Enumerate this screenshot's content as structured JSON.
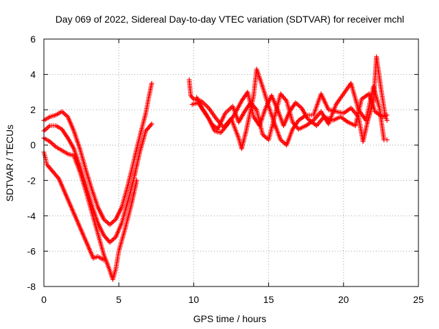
{
  "chart_data": {
    "type": "scatter",
    "title": "Day 069 of 2022, Sidereal Day-to-day VTEC variation (SDTVAR) for receiver mchl",
    "xlabel": "GPS time / hours",
    "ylabel": "SDTVAR / TECUs",
    "xlim": [
      0,
      25
    ],
    "ylim": [
      -8,
      6
    ],
    "xticks": [
      0,
      5,
      10,
      15,
      20,
      25
    ],
    "yticks": [
      -8,
      -6,
      -4,
      -2,
      0,
      2,
      4,
      6
    ],
    "grid": true,
    "marker": "+",
    "color": "#ff0000",
    "series": [
      {
        "values": [
          [
            0.0,
            1.4
          ],
          [
            0.4,
            1.6
          ],
          [
            0.8,
            1.7
          ],
          [
            1.2,
            1.9
          ],
          [
            1.6,
            1.6
          ],
          [
            2.0,
            0.8
          ],
          [
            2.4,
            -0.2
          ],
          [
            2.8,
            -1.4
          ],
          [
            3.2,
            -2.5
          ],
          [
            3.6,
            -3.5
          ],
          [
            4.0,
            -4.2
          ],
          [
            4.4,
            -4.5
          ],
          [
            4.8,
            -4.2
          ],
          [
            5.2,
            -3.5
          ],
          [
            5.6,
            -2.3
          ],
          [
            6.0,
            -0.9
          ],
          [
            6.4,
            0.5
          ],
          [
            6.8,
            1.8
          ],
          [
            7.0,
            2.7
          ],
          [
            7.2,
            3.5
          ]
        ]
      },
      {
        "values": [
          [
            0.0,
            0.8
          ],
          [
            0.4,
            1.1
          ],
          [
            0.8,
            1.1
          ],
          [
            1.2,
            0.9
          ],
          [
            1.6,
            0.4
          ],
          [
            2.0,
            -0.2
          ],
          [
            2.4,
            -1.2
          ],
          [
            2.8,
            -2.3
          ],
          [
            3.2,
            -3.4
          ],
          [
            3.6,
            -4.4
          ],
          [
            4.0,
            -5.1
          ],
          [
            4.4,
            -5.5
          ],
          [
            4.8,
            -5.2
          ],
          [
            5.2,
            -4.4
          ],
          [
            5.6,
            -3.2
          ],
          [
            6.0,
            -1.9
          ],
          [
            6.4,
            -0.4
          ],
          [
            6.8,
            0.8
          ],
          [
            7.2,
            1.2
          ]
        ]
      },
      {
        "values": [
          [
            0.0,
            0.4
          ],
          [
            0.4,
            0.2
          ],
          [
            0.8,
            -0.1
          ],
          [
            1.2,
            -0.3
          ],
          [
            1.6,
            -0.5
          ],
          [
            2.0,
            -0.6
          ],
          [
            2.4,
            -1.5
          ],
          [
            2.8,
            -2.6
          ],
          [
            3.2,
            -3.8
          ],
          [
            3.6,
            -5.0
          ],
          [
            4.0,
            -6.2
          ],
          [
            4.4,
            -7.1
          ],
          [
            4.6,
            -7.6
          ],
          [
            4.8,
            -7.0
          ],
          [
            5.0,
            -6.0
          ],
          [
            5.4,
            -4.8
          ],
          [
            5.8,
            -3.5
          ],
          [
            6.2,
            -2.0
          ]
        ]
      },
      {
        "values": [
          [
            0.0,
            -0.4
          ],
          [
            0.1,
            -0.7
          ],
          [
            0.2,
            -1.1
          ],
          [
            1.0,
            -1.9
          ],
          [
            3.3,
            -6.4
          ],
          [
            3.6,
            -6.3
          ],
          [
            4.0,
            -6.5
          ]
        ]
      },
      {
        "values": [
          [
            9.7,
            3.7
          ],
          [
            9.8,
            2.8
          ],
          [
            10.0,
            2.6
          ],
          [
            10.5,
            2.5
          ],
          [
            11.0,
            2.1
          ],
          [
            11.5,
            1.5
          ],
          [
            12.0,
            1.0
          ],
          [
            12.5,
            1.5
          ],
          [
            13.0,
            0.4
          ],
          [
            13.2,
            -0.2
          ],
          [
            13.5,
            0.8
          ],
          [
            14.0,
            2.8
          ],
          [
            14.2,
            4.3
          ],
          [
            14.6,
            3.3
          ],
          [
            15.0,
            2.2
          ],
          [
            15.4,
            1.2
          ],
          [
            15.8,
            0.3
          ],
          [
            16.2,
            0.0
          ],
          [
            16.6,
            0.9
          ],
          [
            17.0,
            1.4
          ],
          [
            17.5,
            1.7
          ],
          [
            18.0,
            1.7
          ],
          [
            18.5,
            2.9
          ],
          [
            19.0,
            2.0
          ],
          [
            19.5,
            1.9
          ],
          [
            20.0,
            1.8
          ],
          [
            20.5,
            2.1
          ],
          [
            21.0,
            1.6
          ],
          [
            21.3,
            0.2
          ],
          [
            21.6,
            1.3
          ],
          [
            22.0,
            2.5
          ],
          [
            22.2,
            5.0
          ],
          [
            22.5,
            3.2
          ],
          [
            22.8,
            1.6
          ],
          [
            22.9,
            1.4
          ]
        ]
      },
      {
        "values": [
          [
            9.9,
            2.3
          ],
          [
            10.3,
            2.4
          ],
          [
            10.8,
            1.8
          ],
          [
            11.2,
            1.2
          ],
          [
            11.6,
            0.9
          ],
          [
            12.1,
            1.8
          ],
          [
            12.6,
            2.2
          ],
          [
            13.0,
            1.3
          ],
          [
            13.4,
            1.9
          ],
          [
            13.8,
            2.4
          ],
          [
            14.2,
            2.0
          ],
          [
            14.6,
            0.6
          ],
          [
            15.0,
            0.3
          ],
          [
            15.4,
            1.6
          ],
          [
            15.8,
            2.9
          ],
          [
            16.2,
            2.5
          ],
          [
            16.6,
            1.3
          ],
          [
            17.0,
            0.9
          ],
          [
            17.5,
            1.1
          ],
          [
            18.0,
            1.4
          ],
          [
            18.5,
            1.9
          ],
          [
            19.0,
            1.2
          ],
          [
            19.5,
            2.3
          ],
          [
            20.0,
            2.9
          ],
          [
            20.5,
            3.5
          ],
          [
            21.0,
            2.0
          ],
          [
            21.5,
            1.4
          ],
          [
            22.0,
            3.3
          ],
          [
            22.4,
            2.1
          ],
          [
            22.7,
            0.3
          ],
          [
            22.9,
            0.3
          ]
        ]
      },
      {
        "values": [
          [
            10.2,
            2.7
          ],
          [
            10.6,
            2.0
          ],
          [
            11.0,
            1.5
          ],
          [
            11.4,
            0.8
          ],
          [
            11.8,
            0.7
          ],
          [
            12.2,
            1.1
          ],
          [
            12.7,
            1.7
          ],
          [
            13.2,
            2.5
          ],
          [
            13.6,
            3.0
          ],
          [
            14.0,
            1.6
          ],
          [
            14.4,
            1.1
          ],
          [
            14.8,
            2.1
          ],
          [
            15.2,
            2.8
          ],
          [
            15.6,
            2.0
          ],
          [
            16.0,
            1.1
          ],
          [
            16.4,
            1.9
          ],
          [
            16.8,
            2.4
          ],
          [
            17.2,
            2.1
          ],
          [
            17.6,
            1.5
          ],
          [
            18.2,
            1.1
          ],
          [
            18.7,
            1.6
          ],
          [
            19.3,
            1.4
          ],
          [
            19.8,
            1.6
          ],
          [
            20.3,
            1.3
          ],
          [
            20.8,
            1.1
          ],
          [
            21.2,
            2.6
          ],
          [
            21.7,
            2.9
          ],
          [
            22.1,
            1.9
          ],
          [
            22.6,
            1.6
          ],
          [
            22.9,
            1.7
          ]
        ]
      }
    ]
  }
}
